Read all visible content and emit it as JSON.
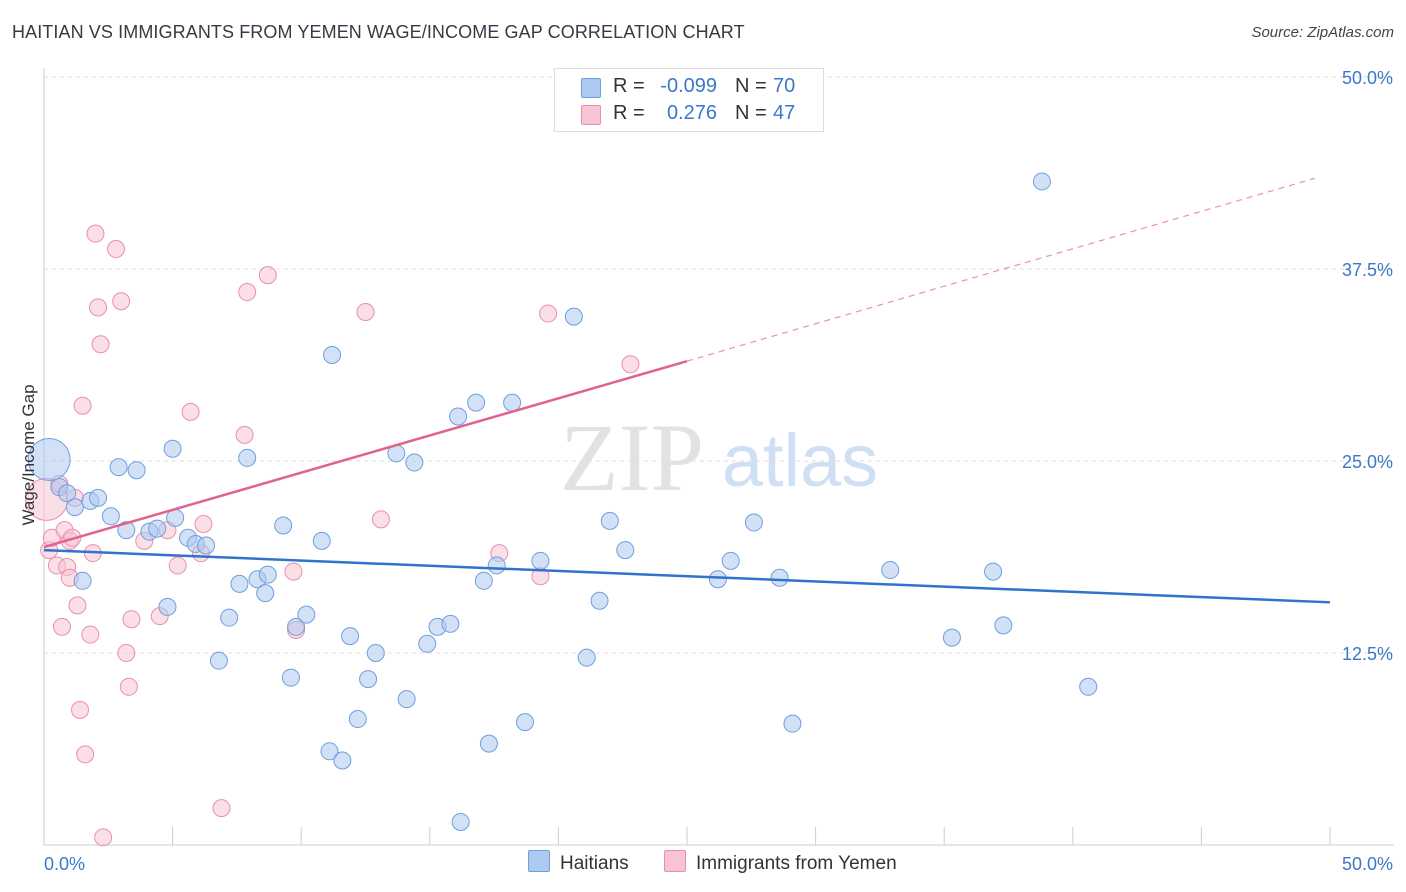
{
  "title": "HAITIAN VS IMMIGRANTS FROM YEMEN WAGE/INCOME GAP CORRELATION CHART",
  "source": "Source: ZipAtlas.com",
  "watermark": {
    "zip": "ZIP",
    "atlas": "atlas"
  },
  "legend_top": [
    {
      "r_label": "R =",
      "r_value": "-0.099",
      "n_label": "N =",
      "n_value": "70"
    },
    {
      "r_label": "R =",
      "r_value": "0.276",
      "n_label": "N =",
      "n_value": "47"
    }
  ],
  "legend_bottom": [
    {
      "label": "Haitians"
    },
    {
      "label": "Immigrants from Yemen"
    }
  ],
  "colors": {
    "blue_fill": "#adc9ef",
    "blue_stroke": "#6e9fe0",
    "blue_line": "#2f73cc",
    "pink_fill": "#f7c4d3",
    "pink_stroke": "#ea8fad",
    "pink_line": "#e0638f",
    "tick_text": "#3a78c9",
    "grid": "#dddddd"
  },
  "chart_data": {
    "type": "scatter",
    "title": "HAITIAN VS IMMIGRANTS FROM YEMEN WAGE/INCOME GAP CORRELATION CHART",
    "xlabel": "",
    "ylabel": "Wage/Income Gap",
    "xlim": [
      0,
      50
    ],
    "ylim": [
      0,
      50
    ],
    "x_tick_labels": [
      "0.0%",
      "50.0%"
    ],
    "y_tick_values": [
      12.5,
      25.0,
      37.5,
      50.0
    ],
    "y_tick_labels": [
      "12.5%",
      "25.0%",
      "37.5%",
      "50.0%"
    ],
    "grid": true,
    "series": [
      {
        "name": "Haitians",
        "color": "blue",
        "r": -0.099,
        "n": 70,
        "trend": {
          "x": [
            0,
            50
          ],
          "y": [
            19.2,
            15.8
          ],
          "dashed_to": null
        },
        "points": [
          [
            0.2,
            25.1,
            "big"
          ],
          [
            0.6,
            23.3
          ],
          [
            0.9,
            22.9
          ],
          [
            1.2,
            22.0
          ],
          [
            1.5,
            17.2
          ],
          [
            1.8,
            22.4
          ],
          [
            2.1,
            22.6
          ],
          [
            2.6,
            21.4
          ],
          [
            2.9,
            24.6
          ],
          [
            3.2,
            20.5
          ],
          [
            3.6,
            24.4
          ],
          [
            4.1,
            20.4
          ],
          [
            4.4,
            20.6
          ],
          [
            4.8,
            15.5
          ],
          [
            5.0,
            25.8
          ],
          [
            5.1,
            21.3
          ],
          [
            5.6,
            20.0
          ],
          [
            5.9,
            19.6
          ],
          [
            6.3,
            19.5
          ],
          [
            6.8,
            12.0
          ],
          [
            7.2,
            14.8
          ],
          [
            7.6,
            17.0
          ],
          [
            7.9,
            25.2
          ],
          [
            8.3,
            17.3
          ],
          [
            8.6,
            16.4
          ],
          [
            8.7,
            17.6
          ],
          [
            9.3,
            20.8
          ],
          [
            9.6,
            10.9
          ],
          [
            9.8,
            14.2
          ],
          [
            10.2,
            15.0
          ],
          [
            10.8,
            19.8
          ],
          [
            11.1,
            6.1
          ],
          [
            11.2,
            31.9
          ],
          [
            11.6,
            5.5
          ],
          [
            11.9,
            13.6
          ],
          [
            12.2,
            8.2
          ],
          [
            12.6,
            10.8
          ],
          [
            12.9,
            12.5
          ],
          [
            13.7,
            25.5
          ],
          [
            14.1,
            9.5
          ],
          [
            14.4,
            24.9
          ],
          [
            14.9,
            13.1
          ],
          [
            15.3,
            14.2
          ],
          [
            15.8,
            14.4
          ],
          [
            16.1,
            27.9
          ],
          [
            16.2,
            1.5
          ],
          [
            16.8,
            28.8
          ],
          [
            17.1,
            17.2
          ],
          [
            17.3,
            6.6
          ],
          [
            17.6,
            18.2
          ],
          [
            18.2,
            28.8
          ],
          [
            18.7,
            8.0
          ],
          [
            19.3,
            18.5
          ],
          [
            20.6,
            34.4
          ],
          [
            21.1,
            12.2
          ],
          [
            21.6,
            15.9
          ],
          [
            22.0,
            21.1
          ],
          [
            22.6,
            19.2
          ],
          [
            26.2,
            17.3
          ],
          [
            26.7,
            18.5
          ],
          [
            27.6,
            21.0
          ],
          [
            28.6,
            17.4
          ],
          [
            29.1,
            7.9
          ],
          [
            32.9,
            17.9
          ],
          [
            35.3,
            13.5
          ],
          [
            36.9,
            17.8
          ],
          [
            37.3,
            14.3
          ],
          [
            38.8,
            43.2
          ],
          [
            40.6,
            10.3
          ]
        ]
      },
      {
        "name": "Immigrants from Yemen",
        "color": "pink",
        "r": 0.276,
        "n": 47,
        "trend": {
          "x": [
            0,
            25
          ],
          "y": [
            19.4,
            31.5
          ],
          "dashed_to": [
            49.4,
            43.4
          ]
        },
        "points": [
          [
            0.1,
            22.5,
            "big"
          ],
          [
            0.2,
            19.2
          ],
          [
            0.3,
            20.0
          ],
          [
            0.5,
            18.2
          ],
          [
            0.6,
            23.5
          ],
          [
            0.7,
            14.2
          ],
          [
            0.8,
            20.5
          ],
          [
            0.9,
            18.1
          ],
          [
            1.0,
            17.4
          ],
          [
            1.0,
            19.8
          ],
          [
            1.1,
            20.0
          ],
          [
            1.2,
            22.6
          ],
          [
            1.3,
            15.6
          ],
          [
            1.4,
            8.8
          ],
          [
            1.5,
            28.6
          ],
          [
            1.6,
            5.9
          ],
          [
            1.8,
            13.7
          ],
          [
            1.9,
            19.0
          ],
          [
            2.0,
            39.8
          ],
          [
            2.1,
            35.0
          ],
          [
            2.2,
            32.6
          ],
          [
            2.3,
            0.5
          ],
          [
            2.8,
            38.8
          ],
          [
            3.0,
            35.4
          ],
          [
            3.2,
            12.5
          ],
          [
            3.3,
            10.3
          ],
          [
            3.4,
            14.7
          ],
          [
            3.9,
            19.8
          ],
          [
            4.5,
            14.9
          ],
          [
            4.8,
            20.5
          ],
          [
            5.2,
            18.2
          ],
          [
            5.7,
            28.2
          ],
          [
            6.1,
            19.0
          ],
          [
            6.2,
            20.9
          ],
          [
            6.9,
            2.4
          ],
          [
            7.8,
            26.7
          ],
          [
            7.9,
            36.0
          ],
          [
            8.7,
            37.1
          ],
          [
            9.7,
            17.8
          ],
          [
            9.8,
            14.0
          ],
          [
            12.5,
            34.7
          ],
          [
            13.1,
            21.2
          ],
          [
            17.7,
            19.0
          ],
          [
            19.3,
            17.5
          ],
          [
            19.6,
            34.6
          ],
          [
            22.8,
            31.3
          ]
        ]
      }
    ]
  }
}
